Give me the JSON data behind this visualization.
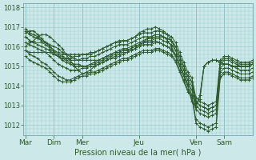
{
  "xlabel": "Pression niveau de la mer( hPa )",
  "background_color": "#cce8e8",
  "grid_color": "#99cccc",
  "line_color": "#2d5a2d",
  "ylim": [
    1011.5,
    1018.2
  ],
  "yticks": [
    1012,
    1013,
    1014,
    1015,
    1016,
    1017,
    1018
  ],
  "day_labels": [
    "Mar",
    "Dim",
    "Mer",
    "Jeu",
    "Ven",
    "Sam"
  ],
  "day_positions": [
    0,
    28,
    56,
    112,
    168,
    196
  ],
  "xlim": [
    -2,
    224
  ],
  "lines": [
    {
      "x": [
        0,
        4,
        8,
        12,
        16,
        20,
        24,
        28,
        32,
        36,
        40,
        44,
        48,
        52,
        56,
        60,
        64,
        68,
        72,
        76,
        80,
        84,
        88,
        92,
        96,
        100,
        104,
        108,
        112,
        116,
        120,
        124,
        128,
        132,
        136,
        140,
        144,
        148,
        152,
        156,
        160,
        164,
        168,
        172,
        176,
        180,
        184,
        188,
        192,
        196,
        200,
        204,
        208,
        212,
        216,
        220,
        224
      ],
      "y": [
        1016.8,
        1016.6,
        1016.5,
        1016.4,
        1016.3,
        1016.2,
        1016.1,
        1016.0,
        1015.9,
        1015.7,
        1015.6,
        1015.5,
        1015.4,
        1015.3,
        1015.3,
        1015.3,
        1015.3,
        1015.3,
        1015.3,
        1015.4,
        1015.5,
        1015.6,
        1015.7,
        1015.8,
        1015.9,
        1015.9,
        1016.0,
        1016.1,
        1016.2,
        1016.3,
        1016.4,
        1016.4,
        1016.5,
        1016.5,
        1016.5,
        1016.4,
        1016.3,
        1016.0,
        1015.5,
        1015.0,
        1014.5,
        1014.2,
        1013.2,
        1013.0,
        1012.9,
        1012.8,
        1012.9,
        1013.0,
        1015.1,
        1015.3,
        1015.3,
        1015.2,
        1015.1,
        1015.0,
        1015.0,
        1015.0,
        1015.1
      ]
    },
    {
      "x": [
        0,
        4,
        8,
        12,
        16,
        20,
        24,
        28,
        32,
        36,
        40,
        44,
        48,
        52,
        56,
        60,
        64,
        68,
        72,
        76,
        80,
        84,
        88,
        92,
        96,
        100,
        104,
        108,
        112,
        116,
        120,
        124,
        128,
        132,
        136,
        140,
        144,
        148,
        152,
        156,
        160,
        164,
        168,
        172,
        176,
        180,
        184,
        188,
        192,
        196,
        200,
        204,
        208,
        212,
        216,
        220,
        224
      ],
      "y": [
        1016.5,
        1016.3,
        1016.2,
        1016.1,
        1016.0,
        1015.9,
        1015.8,
        1015.6,
        1015.5,
        1015.3,
        1015.2,
        1015.1,
        1015.0,
        1015.0,
        1015.0,
        1015.0,
        1015.1,
        1015.1,
        1015.2,
        1015.3,
        1015.4,
        1015.5,
        1015.6,
        1015.7,
        1015.8,
        1015.8,
        1015.9,
        1016.0,
        1016.1,
        1016.2,
        1016.3,
        1016.3,
        1016.4,
        1016.4,
        1016.3,
        1016.2,
        1016.1,
        1015.8,
        1015.3,
        1014.8,
        1014.3,
        1014.0,
        1013.0,
        1012.8,
        1012.7,
        1012.6,
        1012.7,
        1012.8,
        1014.9,
        1015.1,
        1015.1,
        1015.0,
        1014.9,
        1014.8,
        1014.8,
        1014.8,
        1014.9
      ]
    },
    {
      "x": [
        0,
        4,
        8,
        12,
        16,
        20,
        24,
        28,
        32,
        36,
        40,
        44,
        48,
        52,
        56,
        60,
        64,
        68,
        72,
        76,
        80,
        84,
        88,
        92,
        96,
        100,
        104,
        108,
        112,
        116,
        120,
        124,
        128,
        132,
        136,
        140,
        144,
        148,
        152,
        156,
        160,
        164,
        168,
        172,
        176,
        180,
        184,
        188,
        192,
        196,
        200,
        204,
        208,
        212,
        216,
        220,
        224
      ],
      "y": [
        1016.2,
        1016.1,
        1016.0,
        1015.9,
        1015.8,
        1015.7,
        1015.5,
        1015.3,
        1015.1,
        1015.0,
        1014.9,
        1014.8,
        1014.8,
        1014.8,
        1014.9,
        1014.9,
        1015.0,
        1015.0,
        1015.1,
        1015.2,
        1015.3,
        1015.4,
        1015.5,
        1015.6,
        1015.7,
        1015.7,
        1015.8,
        1015.9,
        1016.0,
        1016.1,
        1016.1,
        1016.1,
        1016.2,
        1016.2,
        1016.1,
        1016.0,
        1015.9,
        1015.6,
        1015.1,
        1014.6,
        1014.1,
        1013.8,
        1012.8,
        1012.6,
        1012.5,
        1012.4,
        1012.5,
        1012.6,
        1014.7,
        1014.9,
        1014.9,
        1014.8,
        1014.7,
        1014.6,
        1014.6,
        1014.6,
        1014.7
      ]
    },
    {
      "x": [
        0,
        4,
        8,
        12,
        16,
        20,
        24,
        28,
        32,
        36,
        40,
        44,
        48,
        52,
        56,
        60,
        64,
        68,
        72,
        76,
        80,
        84,
        88,
        92,
        96,
        100,
        104,
        108,
        112,
        116,
        120,
        124,
        128,
        132,
        136,
        140,
        144,
        148,
        152,
        156,
        160,
        164,
        168,
        172,
        176,
        180,
        184,
        188,
        192,
        196,
        200,
        204,
        208,
        212,
        216,
        220,
        224
      ],
      "y": [
        1015.8,
        1015.6,
        1015.5,
        1015.4,
        1015.2,
        1015.1,
        1014.9,
        1014.7,
        1014.5,
        1014.4,
        1014.3,
        1014.3,
        1014.4,
        1014.5,
        1014.6,
        1014.6,
        1014.7,
        1014.7,
        1014.8,
        1014.9,
        1015.0,
        1015.1,
        1015.2,
        1015.3,
        1015.4,
        1015.4,
        1015.5,
        1015.6,
        1015.7,
        1015.8,
        1015.8,
        1015.8,
        1015.9,
        1015.9,
        1015.8,
        1015.7,
        1015.6,
        1015.3,
        1014.8,
        1014.3,
        1013.8,
        1013.5,
        1012.3,
        1012.1,
        1012.0,
        1011.9,
        1012.0,
        1012.1,
        1014.5,
        1014.7,
        1014.7,
        1014.6,
        1014.5,
        1014.4,
        1014.4,
        1014.4,
        1014.5
      ]
    },
    {
      "x": [
        0,
        4,
        8,
        12,
        16,
        20,
        24,
        28,
        32,
        36,
        40,
        44,
        48,
        52,
        56,
        60,
        64,
        68,
        72,
        76,
        80,
        84,
        88,
        92,
        96,
        100,
        104,
        108,
        112,
        116,
        120,
        124,
        128,
        132,
        136,
        140,
        144,
        148,
        152,
        156,
        160,
        164,
        168,
        172,
        176,
        180,
        184,
        188,
        192,
        196,
        200,
        204,
        208,
        212,
        216,
        220,
        224
      ],
      "y": [
        1015.5,
        1015.3,
        1015.2,
        1015.1,
        1015.0,
        1014.9,
        1014.7,
        1014.5,
        1014.3,
        1014.2,
        1014.2,
        1014.2,
        1014.3,
        1014.4,
        1014.5,
        1014.5,
        1014.6,
        1014.6,
        1014.7,
        1014.8,
        1014.9,
        1015.0,
        1015.1,
        1015.2,
        1015.3,
        1015.3,
        1015.4,
        1015.5,
        1015.6,
        1015.7,
        1015.7,
        1015.7,
        1015.8,
        1015.8,
        1015.7,
        1015.6,
        1015.5,
        1015.2,
        1014.7,
        1014.2,
        1013.7,
        1013.4,
        1012.1,
        1011.9,
        1011.8,
        1011.7,
        1011.8,
        1011.9,
        1014.4,
        1014.6,
        1014.6,
        1014.5,
        1014.4,
        1014.3,
        1014.3,
        1014.3,
        1014.4
      ]
    },
    {
      "x": [
        0,
        4,
        8,
        12,
        16,
        20,
        24,
        28,
        32,
        36,
        40,
        44,
        48,
        52,
        56,
        60,
        64,
        68,
        72,
        76,
        80,
        84,
        88,
        92,
        96,
        100,
        104,
        108,
        112,
        116,
        120,
        124,
        128,
        132,
        136,
        140,
        144,
        148,
        152,
        156,
        160,
        164,
        168,
        172,
        176,
        180,
        184,
        188,
        192,
        196,
        200,
        204,
        208,
        212,
        216,
        220,
        224
      ],
      "y": [
        1016.9,
        1016.7,
        1016.6,
        1016.5,
        1016.3,
        1016.2,
        1016.0,
        1015.8,
        1015.6,
        1015.5,
        1015.4,
        1015.3,
        1015.3,
        1015.3,
        1015.4,
        1015.4,
        1015.5,
        1015.5,
        1015.6,
        1015.7,
        1015.8,
        1015.9,
        1016.0,
        1016.1,
        1016.1,
        1016.1,
        1016.2,
        1016.3,
        1016.4,
        1016.5,
        1016.5,
        1016.5,
        1016.6,
        1016.6,
        1016.5,
        1016.4,
        1016.3,
        1016.0,
        1015.5,
        1015.0,
        1014.5,
        1014.2,
        1013.2,
        1013.0,
        1012.9,
        1012.8,
        1012.9,
        1013.0,
        1015.2,
        1015.4,
        1015.4,
        1015.3,
        1015.2,
        1015.1,
        1015.1,
        1015.1,
        1015.2
      ]
    },
    {
      "x": [
        0,
        4,
        8,
        16,
        20,
        24,
        28,
        32,
        36,
        40,
        44,
        48,
        52,
        56,
        60,
        64,
        68,
        72,
        76,
        80,
        84,
        88,
        92,
        96,
        100,
        104,
        108,
        112,
        116,
        120,
        124,
        128,
        132,
        136,
        140,
        144,
        148,
        152,
        156,
        160,
        164,
        168,
        172,
        176,
        180,
        184,
        188,
        192,
        196,
        200,
        204,
        208,
        212,
        216,
        220,
        224
      ],
      "y": [
        1016.5,
        1016.3,
        1016.2,
        1016.2,
        1016.1,
        1015.9,
        1015.7,
        1015.5,
        1015.4,
        1015.4,
        1015.4,
        1015.5,
        1015.5,
        1015.6,
        1015.6,
        1015.7,
        1015.7,
        1015.8,
        1015.9,
        1016.0,
        1016.1,
        1016.2,
        1016.3,
        1016.3,
        1016.3,
        1016.4,
        1016.5,
        1016.6,
        1016.7,
        1016.7,
        1016.7,
        1016.8,
        1016.8,
        1016.7,
        1016.6,
        1016.5,
        1016.2,
        1015.7,
        1015.2,
        1014.7,
        1014.4,
        1013.4,
        1013.2,
        1013.1,
        1013.0,
        1013.1,
        1013.2,
        1015.3,
        1015.5,
        1015.5,
        1015.4,
        1015.3,
        1015.2,
        1015.2,
        1015.2,
        1015.3
      ]
    },
    {
      "x": [
        0,
        4,
        8,
        12,
        16,
        20,
        24,
        28,
        32,
        36,
        40,
        44,
        48,
        52,
        56,
        60,
        64,
        68,
        72,
        76,
        80,
        84,
        88,
        92,
        96,
        100,
        104,
        108,
        112,
        116,
        120,
        124,
        128,
        132,
        136,
        140,
        144,
        148,
        152,
        156,
        160,
        164,
        168,
        172,
        176,
        180,
        184,
        188,
        192,
        196,
        200,
        204,
        208,
        212,
        216,
        220,
        224
      ],
      "y": [
        1016.0,
        1016.2,
        1016.3,
        1016.5,
        1016.6,
        1016.6,
        1016.5,
        1016.3,
        1016.1,
        1015.9,
        1015.6,
        1015.3,
        1015.0,
        1014.8,
        1014.6,
        1014.7,
        1014.8,
        1015.0,
        1015.1,
        1015.2,
        1015.3,
        1015.4,
        1015.4,
        1015.5,
        1015.6,
        1015.7,
        1015.8,
        1015.9,
        1016.0,
        1016.2,
        1016.4,
        1016.5,
        1016.6,
        1016.6,
        1016.5,
        1016.3,
        1016.0,
        1015.5,
        1015.0,
        1014.5,
        1014.0,
        1013.2,
        1012.9,
        1013.5,
        1015.0,
        1015.2,
        1015.3,
        1015.3,
        1015.2,
        1015.1,
        1015.1,
        1015.0,
        1015.0,
        1015.0,
        1015.0,
        1015.0,
        1015.1
      ]
    },
    {
      "x": [
        0,
        4,
        8,
        12,
        16,
        20,
        24,
        28,
        32,
        36,
        40,
        44,
        48,
        52,
        56,
        60,
        64,
        68,
        72,
        76,
        80,
        84,
        88,
        92,
        96,
        100,
        104,
        108,
        112,
        116,
        120,
        124,
        128,
        132,
        136,
        140,
        144,
        148,
        152,
        156,
        160,
        164,
        168,
        172,
        176,
        180,
        184,
        188,
        192,
        196,
        200,
        204,
        208,
        212,
        216,
        220,
        224
      ],
      "y": [
        1016.7,
        1016.8,
        1016.8,
        1016.6,
        1016.4,
        1016.2,
        1016.0,
        1015.8,
        1015.7,
        1015.6,
        1015.6,
        1015.6,
        1015.6,
        1015.6,
        1015.6,
        1015.6,
        1015.6,
        1015.7,
        1015.8,
        1015.9,
        1016.0,
        1016.1,
        1016.2,
        1016.2,
        1016.3,
        1016.3,
        1016.4,
        1016.5,
        1016.7,
        1016.8,
        1016.9,
        1016.9,
        1017.0,
        1016.9,
        1016.8,
        1016.6,
        1016.3,
        1015.8,
        1015.3,
        1014.8,
        1014.3,
        1013.5,
        1013.1,
        1013.3,
        1015.0,
        1015.2,
        1015.3,
        1015.3,
        1015.2,
        1015.1,
        1015.1,
        1015.0,
        1015.0,
        1015.0,
        1015.0,
        1015.0,
        1015.1
      ]
    },
    {
      "x": [
        0,
        4,
        8,
        12,
        16,
        20,
        24,
        28,
        32,
        36,
        40,
        44,
        48,
        52,
        56,
        60,
        64,
        68,
        72,
        76,
        80,
        84,
        88,
        92,
        96,
        100,
        104,
        108,
        112,
        116,
        120,
        124,
        128,
        132,
        136,
        140,
        144,
        148,
        152,
        156,
        160,
        164,
        168,
        172,
        176,
        180,
        184,
        188,
        192,
        196,
        200,
        204,
        208,
        212,
        216,
        220,
        224
      ],
      "y": [
        1015.8,
        1015.7,
        1015.7,
        1015.7,
        1015.7,
        1015.7,
        1015.7,
        1015.6,
        1015.5,
        1015.4,
        1015.3,
        1015.2,
        1015.1,
        1015.1,
        1015.0,
        1015.0,
        1015.1,
        1015.2,
        1015.3,
        1015.4,
        1015.5,
        1015.6,
        1015.7,
        1015.7,
        1015.8,
        1015.8,
        1015.9,
        1016.0,
        1016.1,
        1016.2,
        1016.2,
        1016.2,
        1016.3,
        1016.2,
        1016.1,
        1016.0,
        1015.8,
        1015.5,
        1015.0,
        1014.5,
        1014.0,
        1013.2,
        1013.0,
        1013.5,
        1015.0,
        1015.2,
        1015.3,
        1015.3,
        1015.2,
        1015.1,
        1015.1,
        1015.0,
        1015.0,
        1015.0,
        1015.0,
        1015.0,
        1015.1
      ]
    }
  ]
}
